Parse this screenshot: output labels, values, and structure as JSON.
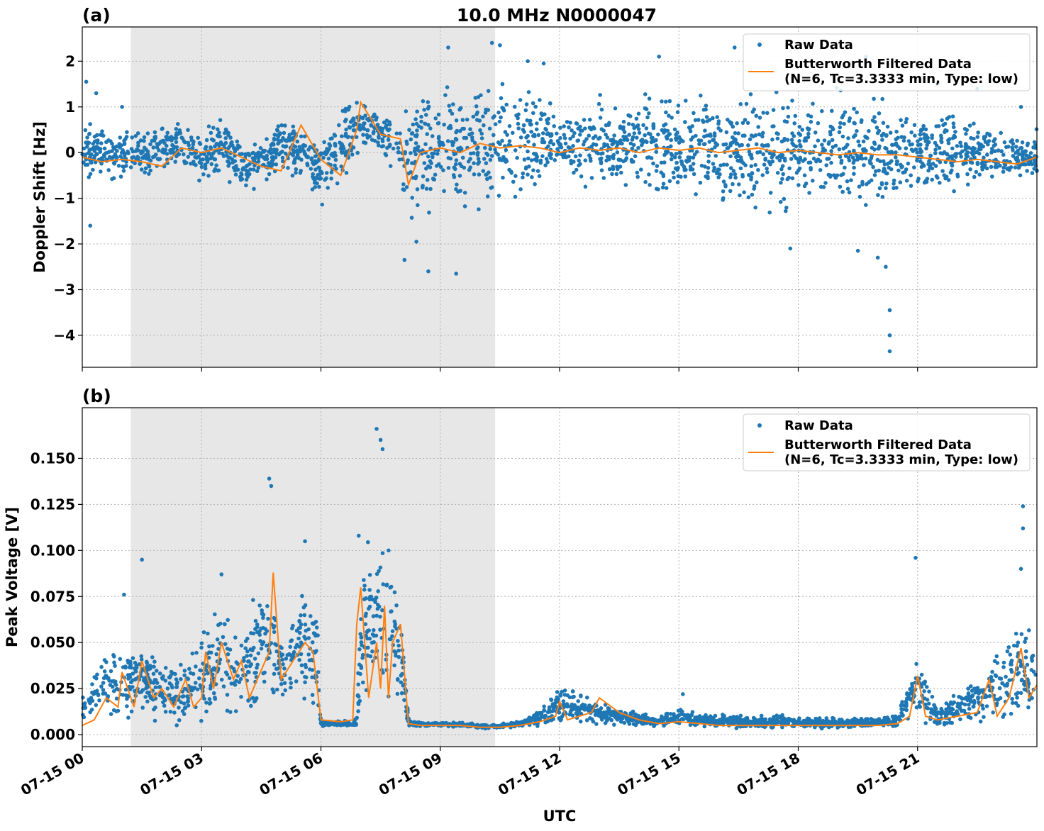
{
  "figure_title": "10.0 MHz N0000047",
  "colors": {
    "raw": "#1f77b4",
    "filtered": "#ff7f0e",
    "shade": "#e7e7e7"
  },
  "xlabel": "UTC",
  "x_ticks": [
    "07-15 00",
    "07-15 03",
    "07-15 06",
    "07-15 09",
    "07-15 12",
    "07-15 15",
    "07-15 18",
    "07-15 21"
  ],
  "legend": {
    "raw": "Raw Data",
    "filtered_line1": "Butterworth Filtered Data",
    "filtered_line2": "(N=6, Tc=3.3333 min, Type: low)"
  },
  "chart_data": [
    {
      "panel": "(a)",
      "type": "scatter",
      "title": "10.0 MHz N0000047",
      "xlabel": "",
      "ylabel": "Doppler Shift [Hz]",
      "x_unit": "hours UTC on 07-15",
      "xlim": [
        0,
        24
      ],
      "ylim": [
        -4.7,
        2.75
      ],
      "y_ticks": [
        2,
        1,
        0,
        -1,
        -2,
        -3,
        -4
      ],
      "y_tick_labels": [
        "2",
        "1",
        "0",
        "−1",
        "−2",
        "−3",
        "−4"
      ],
      "shaded_span": [
        1.22,
        10.38
      ],
      "grid": true,
      "legend_position": "top-right",
      "series": [
        {
          "name": "Raw Data",
          "kind": "scatter",
          "envelope_x": [
            0,
            0.5,
            1.0,
            1.5,
            2.0,
            2.5,
            3.0,
            3.5,
            4.0,
            4.5,
            5.0,
            5.5,
            6.0,
            6.5,
            7.0,
            7.5,
            8.0,
            8.5,
            9.0,
            9.5,
            10.0,
            10.5,
            11.0,
            11.5,
            12.0,
            12.5,
            13.0,
            13.5,
            14.0,
            14.5,
            15.0,
            15.5,
            16.0,
            16.5,
            17.0,
            17.5,
            18.0,
            18.5,
            19.0,
            19.5,
            20.0,
            20.5,
            21.0,
            21.5,
            22.0,
            22.5,
            23.0,
            23.5,
            24.0
          ],
          "envelope_upper": [
            1.0,
            0.6,
            0.7,
            0.7,
            0.8,
            0.9,
            0.6,
            0.9,
            0.4,
            0.5,
            0.9,
            0.6,
            0.5,
            1.2,
            1.5,
            0.9,
            1.5,
            1.8,
            1.8,
            1.7,
            1.8,
            1.9,
            1.8,
            1.7,
            0.8,
            1.2,
            1.4,
            1.3,
            1.5,
            1.5,
            1.5,
            1.6,
            1.6,
            1.5,
            1.6,
            1.6,
            1.6,
            1.5,
            1.6,
            1.5,
            1.4,
            1.1,
            1.0,
            1.0,
            1.0,
            0.9,
            0.7,
            0.7,
            0.6
          ],
          "envelope_lower": [
            -0.9,
            -0.6,
            -0.8,
            -0.7,
            -0.6,
            -0.5,
            -1.0,
            -0.7,
            -1.0,
            -0.8,
            -0.5,
            -0.7,
            -1.3,
            -1.0,
            -0.3,
            0.0,
            -1.5,
            -1.6,
            -1.5,
            -1.5,
            -1.6,
            -1.4,
            -1.3,
            -1.0,
            -0.4,
            -0.8,
            -1.0,
            -1.1,
            -1.1,
            -1.2,
            -1.3,
            -1.3,
            -1.4,
            -1.4,
            -1.5,
            -1.6,
            -1.7,
            -1.6,
            -1.6,
            -1.6,
            -1.5,
            -1.3,
            -1.0,
            -1.0,
            -1.0,
            -0.9,
            -0.8,
            -0.8,
            -0.7
          ],
          "outliers": [
            [
              0.1,
              1.55
            ],
            [
              0.35,
              1.3
            ],
            [
              0.2,
              -1.6
            ],
            [
              1.0,
              1.0
            ],
            [
              8.1,
              -2.35
            ],
            [
              8.4,
              -1.95
            ],
            [
              8.7,
              -2.6
            ],
            [
              9.4,
              -2.65
            ],
            [
              9.2,
              2.3
            ],
            [
              10.3,
              2.4
            ],
            [
              10.5,
              2.35
            ],
            [
              11.2,
              2.0
            ],
            [
              11.6,
              1.95
            ],
            [
              14.5,
              2.1
            ],
            [
              16.4,
              2.3
            ],
            [
              17.8,
              -2.1
            ],
            [
              19.5,
              -2.15
            ],
            [
              19.7,
              2.1
            ],
            [
              20.0,
              -2.3
            ],
            [
              20.2,
              -2.5
            ],
            [
              20.3,
              -3.45
            ],
            [
              20.3,
              -4.0
            ],
            [
              20.3,
              -4.35
            ],
            [
              21.5,
              1.5
            ],
            [
              22.5,
              1.4
            ],
            [
              23.6,
              1.0
            ]
          ]
        },
        {
          "name": "Butterworth Filtered Data\n(N=6, Tc=3.3333 min, Type: low)",
          "kind": "line",
          "x": [
            0,
            0.5,
            1.0,
            1.5,
            2.0,
            2.5,
            3.0,
            3.5,
            4.0,
            4.5,
            5.0,
            5.5,
            6.0,
            6.5,
            6.9,
            7.0,
            7.5,
            8.0,
            8.2,
            8.5,
            9.0,
            9.5,
            10.0,
            10.5,
            11.0,
            11.5,
            12.0,
            12.5,
            13.0,
            13.5,
            14.0,
            14.5,
            15.0,
            15.5,
            16.0,
            16.5,
            17.0,
            17.5,
            18.0,
            18.5,
            19.0,
            19.5,
            20.0,
            20.5,
            21.0,
            21.5,
            22.0,
            22.5,
            23.0,
            23.5,
            24.0
          ],
          "y": [
            -0.1,
            -0.2,
            -0.15,
            -0.2,
            -0.3,
            0.1,
            0.0,
            0.1,
            -0.1,
            -0.3,
            -0.4,
            0.6,
            -0.15,
            -0.5,
            0.5,
            1.1,
            0.4,
            0.3,
            -0.7,
            0.0,
            0.1,
            0.0,
            0.2,
            0.1,
            0.15,
            0.1,
            0.0,
            0.1,
            0.05,
            0.1,
            0.0,
            0.1,
            0.05,
            0.1,
            0.0,
            0.05,
            0.1,
            0.0,
            0.05,
            0.0,
            -0.05,
            0.0,
            -0.05,
            -0.05,
            -0.1,
            -0.15,
            -0.2,
            -0.15,
            -0.2,
            -0.25,
            -0.1
          ]
        }
      ]
    },
    {
      "panel": "(b)",
      "type": "scatter",
      "title": "",
      "xlabel": "UTC",
      "ylabel": "Peak Voltage [V]",
      "x_unit": "hours UTC on 07-15",
      "xlim": [
        0,
        24
      ],
      "ylim": [
        -0.0065,
        0.1775
      ],
      "y_ticks": [
        0.15,
        0.125,
        0.1,
        0.075,
        0.05,
        0.025,
        0.0
      ],
      "y_tick_labels": [
        "0.150",
        "0.125",
        "0.100",
        "0.075",
        "0.050",
        "0.025",
        "0.000"
      ],
      "shaded_span": [
        1.22,
        10.38
      ],
      "grid": true,
      "legend_position": "top-right",
      "series": [
        {
          "name": "Raw Data",
          "kind": "scatter",
          "envelope_x": [
            0,
            0.5,
            1.0,
            1.5,
            2.0,
            2.5,
            3.0,
            3.5,
            4.0,
            4.5,
            5.0,
            5.5,
            5.9,
            6.0,
            6.5,
            6.9,
            7.0,
            7.5,
            8.0,
            8.2,
            8.5,
            9.0,
            9.5,
            10.0,
            10.5,
            11.0,
            11.5,
            12.0,
            12.5,
            13.0,
            13.5,
            14.0,
            14.5,
            15.0,
            15.5,
            16.0,
            16.5,
            17.0,
            17.5,
            18.0,
            18.5,
            19.0,
            19.5,
            20.0,
            20.5,
            21.0,
            21.5,
            22.0,
            22.5,
            23.0,
            23.5,
            24.0
          ],
          "envelope_upper": [
            0.025,
            0.045,
            0.05,
            0.055,
            0.045,
            0.04,
            0.06,
            0.075,
            0.06,
            0.095,
            0.07,
            0.09,
            0.08,
            0.008,
            0.008,
            0.009,
            0.1,
            0.13,
            0.09,
            0.01,
            0.007,
            0.007,
            0.007,
            0.006,
            0.006,
            0.008,
            0.015,
            0.028,
            0.025,
            0.02,
            0.015,
            0.013,
            0.012,
            0.015,
            0.012,
            0.012,
            0.011,
            0.011,
            0.011,
            0.01,
            0.01,
            0.01,
            0.01,
            0.01,
            0.012,
            0.05,
            0.015,
            0.025,
            0.035,
            0.05,
            0.07,
            0.065
          ],
          "envelope_lower": [
            0.004,
            0.005,
            0.005,
            0.005,
            0.004,
            0.004,
            0.004,
            0.006,
            0.006,
            0.006,
            0.008,
            0.008,
            0.006,
            0.004,
            0.004,
            0.004,
            0.005,
            0.006,
            0.005,
            0.004,
            0.004,
            0.004,
            0.004,
            0.003,
            0.003,
            0.004,
            0.004,
            0.004,
            0.004,
            0.004,
            0.004,
            0.003,
            0.003,
            0.004,
            0.004,
            0.003,
            0.003,
            0.003,
            0.003,
            0.003,
            0.003,
            0.003,
            0.003,
            0.003,
            0.003,
            0.004,
            0.004,
            0.004,
            0.004,
            0.004,
            0.005,
            0.005
          ],
          "outliers": [
            [
              1.05,
              0.076
            ],
            [
              1.5,
              0.095
            ],
            [
              3.5,
              0.087
            ],
            [
              4.7,
              0.139
            ],
            [
              4.75,
              0.135
            ],
            [
              5.6,
              0.105
            ],
            [
              6.95,
              0.108
            ],
            [
              7.4,
              0.166
            ],
            [
              7.5,
              0.16
            ],
            [
              7.55,
              0.155
            ],
            [
              7.7,
              0.1
            ],
            [
              15.1,
              0.022
            ],
            [
              20.95,
              0.096
            ],
            [
              23.65,
              0.124
            ],
            [
              23.65,
              0.112
            ],
            [
              23.6,
              0.09
            ]
          ]
        },
        {
          "name": "Butterworth Filtered Data\n(N=6, Tc=3.3333 min, Type: low)",
          "kind": "line",
          "x": [
            0,
            0.3,
            0.6,
            0.9,
            1.0,
            1.3,
            1.5,
            1.8,
            2.0,
            2.3,
            2.6,
            2.8,
            3.0,
            3.1,
            3.3,
            3.5,
            3.8,
            4.0,
            4.2,
            4.5,
            4.7,
            4.8,
            5.0,
            5.3,
            5.6,
            5.8,
            6.0,
            6.5,
            6.8,
            6.9,
            7.0,
            7.2,
            7.4,
            7.5,
            7.6,
            7.7,
            7.8,
            8.0,
            8.2,
            8.5,
            9.0,
            9.5,
            10.0,
            10.5,
            11.0,
            11.5,
            11.9,
            12.0,
            12.2,
            12.5,
            12.8,
            13.0,
            13.5,
            14.0,
            14.5,
            15.0,
            15.5,
            16.0,
            17.0,
            18.0,
            19.0,
            20.0,
            20.5,
            20.8,
            21.0,
            21.2,
            21.5,
            22.0,
            22.5,
            22.8,
            23.0,
            23.3,
            23.6,
            23.8,
            24.0
          ],
          "y": [
            0.005,
            0.008,
            0.02,
            0.015,
            0.034,
            0.015,
            0.04,
            0.02,
            0.025,
            0.015,
            0.03,
            0.015,
            0.02,
            0.045,
            0.025,
            0.05,
            0.03,
            0.04,
            0.02,
            0.035,
            0.045,
            0.088,
            0.03,
            0.04,
            0.05,
            0.045,
            0.008,
            0.007,
            0.008,
            0.06,
            0.08,
            0.02,
            0.05,
            0.025,
            0.07,
            0.02,
            0.05,
            0.06,
            0.006,
            0.005,
            0.005,
            0.005,
            0.004,
            0.004,
            0.005,
            0.007,
            0.01,
            0.018,
            0.008,
            0.01,
            0.012,
            0.02,
            0.012,
            0.008,
            0.006,
            0.007,
            0.006,
            0.005,
            0.005,
            0.005,
            0.005,
            0.005,
            0.006,
            0.01,
            0.032,
            0.01,
            0.008,
            0.01,
            0.012,
            0.03,
            0.01,
            0.02,
            0.047,
            0.02,
            0.027
          ]
        }
      ]
    }
  ]
}
